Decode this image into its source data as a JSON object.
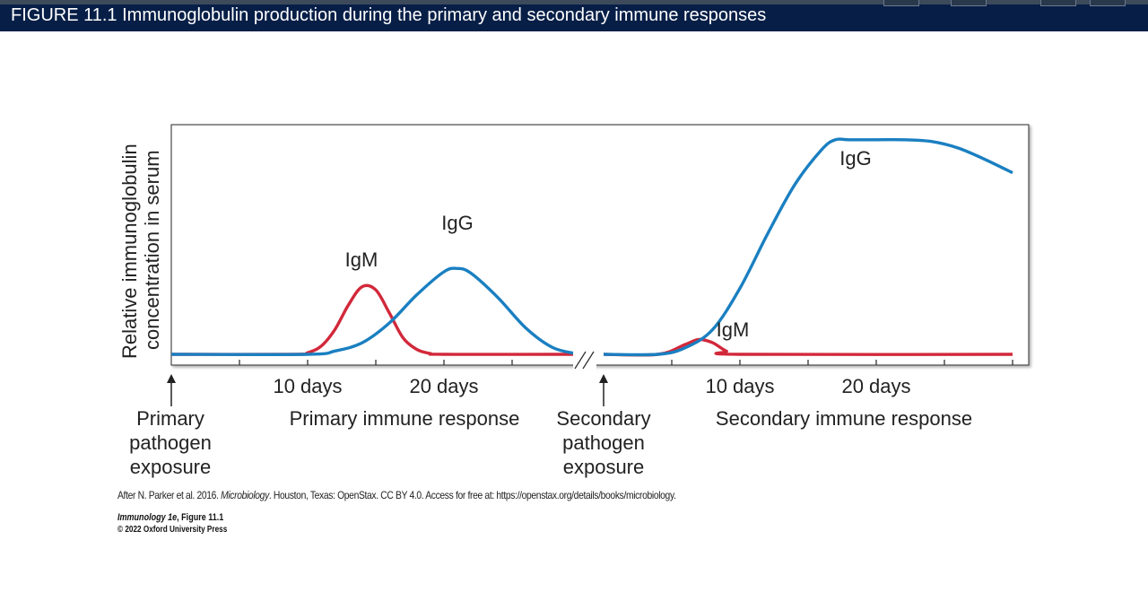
{
  "header": {
    "figure_title": "FIGURE 11.1  Immunoglobulin production during the primary and secondary immune responses"
  },
  "chart_data": {
    "type": "line",
    "title": "",
    "ylabel_line1": "Relative immunoglobulin",
    "ylabel_line2": "concentration in serum",
    "axis_break": true,
    "primary_tick_labels": [
      {
        "day": 10,
        "label": "10 days"
      },
      {
        "day": 20,
        "label": "20 days"
      }
    ],
    "secondary_tick_labels": [
      {
        "day": 10,
        "label": "10 days"
      },
      {
        "day": 20,
        "label": "20 days"
      }
    ],
    "colors": {
      "IgG": "#1a7fc1",
      "IgM": "#d2283a",
      "axes": "#333333"
    },
    "primary_response": {
      "x_range_days": [
        0,
        30
      ],
      "series": [
        {
          "name": "IgM",
          "x": [
            0,
            9,
            10,
            11,
            12,
            13,
            14,
            15,
            16,
            17,
            18,
            19,
            20,
            30
          ],
          "y": [
            0,
            0,
            0.02,
            0.1,
            0.3,
            0.6,
            0.82,
            0.78,
            0.5,
            0.2,
            0.06,
            0.01,
            0,
            0
          ]
        },
        {
          "name": "IgG",
          "x": [
            0,
            10,
            12,
            14,
            16,
            18,
            20,
            21,
            22,
            24,
            26,
            28,
            30
          ],
          "y": [
            0,
            0,
            0.04,
            0.14,
            0.38,
            0.72,
            1.0,
            1.04,
            0.98,
            0.68,
            0.32,
            0.08,
            0
          ]
        }
      ]
    },
    "secondary_response": {
      "x_range_days": [
        0,
        30
      ],
      "series": [
        {
          "name": "IgM",
          "x": [
            0,
            4,
            6,
            7,
            8,
            9,
            10,
            30
          ],
          "y": [
            0,
            0,
            0.12,
            0.18,
            0.14,
            0.04,
            0,
            0
          ]
        },
        {
          "name": "IgG",
          "x": [
            0,
            4,
            6,
            8,
            10,
            12,
            14,
            16,
            17,
            18,
            20,
            22,
            24,
            26,
            28,
            30
          ],
          "y": [
            0,
            0,
            0.08,
            0.3,
            0.8,
            1.45,
            2.05,
            2.48,
            2.6,
            2.6,
            2.6,
            2.6,
            2.58,
            2.5,
            2.36,
            2.2
          ]
        }
      ]
    },
    "annotations": [
      {
        "text": "IgM",
        "near": "primary IgM peak"
      },
      {
        "text": "IgG",
        "near": "primary IgG peak"
      },
      {
        "text": "IgM",
        "near": "secondary IgM bump"
      },
      {
        "text": "IgG",
        "near": "secondary IgG plateau"
      }
    ],
    "events": {
      "primary_exposure_label": [
        "Primary",
        "pathogen",
        "exposure"
      ],
      "secondary_exposure_label": [
        "Secondary",
        "pathogen",
        "exposure"
      ],
      "primary_phase_label": "Primary immune response",
      "secondary_phase_label": "Secondary immune response"
    }
  },
  "credit": {
    "prefix": "After N. Parker et al. 2016. ",
    "italic": "Microbiology",
    "suffix": ". Houston, Texas: OpenStax. CC BY 4.0. Access for free at: https://openstax.org/details/books/microbiology."
  },
  "source": {
    "book": "Immunology 1e",
    "figure": ", Figure 11.1",
    "copyright": "© 2022 Oxford University Press"
  }
}
